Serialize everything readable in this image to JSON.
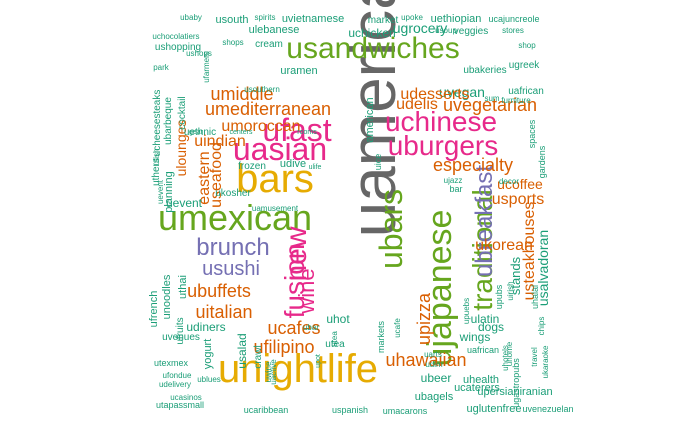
{
  "palette": {
    "teal": "#1b9e77",
    "orange": "#d95f02",
    "purple": "#7570b3",
    "magenta": "#e7298a",
    "green": "#66a61e",
    "gold": "#e6ab02",
    "brown": "#a6761d",
    "gray": "#666666"
  },
  "words": [
    {
      "text": "uamerican",
      "color": "gray"
    },
    {
      "text": "unightlife",
      "color": "gold"
    },
    {
      "text": "usandwiches",
      "color": "green"
    },
    {
      "text": "bars",
      "color": "gold"
    },
    {
      "text": "umexican",
      "color": "green"
    },
    {
      "text": "uchinese",
      "color": "magenta"
    },
    {
      "text": "uburgers",
      "color": "magenta"
    },
    {
      "text": "ufast",
      "color": "magenta"
    },
    {
      "text": "uasian",
      "color": "magenta"
    },
    {
      "text": "ujapanese",
      "color": "green"
    },
    {
      "text": "ubars",
      "color": "green"
    },
    {
      "text": "traditional",
      "color": "green"
    },
    {
      "text": "ubreakfast",
      "color": "purple"
    },
    {
      "text": "brunch",
      "color": "purple"
    },
    {
      "text": "usushi",
      "color": "purple"
    },
    {
      "text": "fusion",
      "color": "magenta"
    },
    {
      "text": "new",
      "color": "magenta"
    },
    {
      "text": "wine",
      "color": "magenta"
    },
    {
      "text": "umediterranean",
      "color": "orange"
    },
    {
      "text": "umoroccan",
      "color": "orange"
    },
    {
      "text": "umiddle",
      "color": "orange"
    },
    {
      "text": "udelis",
      "color": "orange"
    },
    {
      "text": "uvegetarian",
      "color": "orange"
    },
    {
      "text": "uvegan",
      "color": "teal"
    },
    {
      "text": "udesserts",
      "color": "orange"
    },
    {
      "text": "especialty",
      "color": "orange"
    },
    {
      "text": "usports",
      "color": "orange"
    },
    {
      "text": "ukorean",
      "color": "orange"
    },
    {
      "text": "usteakhouses",
      "color": "orange"
    },
    {
      "text": "upizza",
      "color": "orange"
    },
    {
      "text": "uhawaiian",
      "color": "orange"
    },
    {
      "text": "ubuffets",
      "color": "orange"
    },
    {
      "text": "uitalian",
      "color": "orange"
    },
    {
      "text": "ucafes",
      "color": "orange"
    },
    {
      "text": "ufilipino",
      "color": "orange"
    },
    {
      "text": "uindian",
      "color": "orange"
    },
    {
      "text": "useafood",
      "color": "orange"
    },
    {
      "text": "eastern",
      "color": "orange"
    },
    {
      "text": "ulounges",
      "color": "orange"
    },
    {
      "text": "ucoffee",
      "color": "orange"
    },
    {
      "text": "usalvadoran",
      "color": "teal"
    },
    {
      "text": "ugrocery",
      "color": "teal"
    },
    {
      "text": "uchicken",
      "color": "teal"
    },
    {
      "text": "ushopping",
      "color": "teal"
    },
    {
      "text": "uchocolatiers",
      "color": "teal"
    },
    {
      "text": "ulebanese",
      "color": "teal"
    },
    {
      "text": "uvietnamese",
      "color": "teal"
    },
    {
      "text": "uethiopian",
      "color": "teal"
    },
    {
      "text": "ucajuncreole",
      "color": "teal"
    },
    {
      "text": "usouth",
      "color": "teal"
    },
    {
      "text": "market",
      "color": "teal"
    },
    {
      "text": "veggies",
      "color": "teal"
    },
    {
      "text": "cream",
      "color": "teal"
    },
    {
      "text": "uramen",
      "color": "teal"
    },
    {
      "text": "ubakeries",
      "color": "teal"
    },
    {
      "text": "uafrican",
      "color": "teal"
    },
    {
      "text": "ugreek",
      "color": "teal"
    },
    {
      "text": "uevent",
      "color": "teal"
    },
    {
      "text": "uhot",
      "color": "teal"
    },
    {
      "text": "udiners",
      "color": "teal"
    },
    {
      "text": "ulatin",
      "color": "teal"
    },
    {
      "text": "dogs",
      "color": "teal"
    },
    {
      "text": "wings",
      "color": "teal"
    },
    {
      "text": "ubeer",
      "color": "teal"
    },
    {
      "text": "ucaterers",
      "color": "teal"
    },
    {
      "text": "ubagels",
      "color": "teal"
    },
    {
      "text": "uhealth",
      "color": "teal"
    },
    {
      "text": "upersianiranian",
      "color": "teal"
    },
    {
      "text": "uglutenfree",
      "color": "teal"
    },
    {
      "text": "uvenezuelan",
      "color": "teal"
    },
    {
      "text": "uspanish",
      "color": "teal"
    },
    {
      "text": "umacarons",
      "color": "teal"
    },
    {
      "text": "ucaribbean",
      "color": "teal"
    },
    {
      "text": "utapassmall",
      "color": "teal"
    },
    {
      "text": "ucasinos",
      "color": "teal"
    },
    {
      "text": "udelivery",
      "color": "teal"
    },
    {
      "text": "utexmex",
      "color": "teal"
    },
    {
      "text": "ufondue",
      "color": "teal"
    },
    {
      "text": "ublues",
      "color": "teal"
    },
    {
      "text": "uwine",
      "color": "teal"
    },
    {
      "text": "utea",
      "color": "teal"
    },
    {
      "text": "usalad",
      "color": "teal"
    },
    {
      "text": "crawl",
      "color": "teal"
    },
    {
      "text": "uactive",
      "color": "teal"
    },
    {
      "text": "yogurt",
      "color": "teal"
    },
    {
      "text": "uvenues",
      "color": "teal"
    },
    {
      "text": "ufruits",
      "color": "teal"
    },
    {
      "text": "ufrench",
      "color": "teal"
    },
    {
      "text": "unoodles",
      "color": "teal"
    },
    {
      "text": "uthai",
      "color": "teal"
    },
    {
      "text": "planning",
      "color": "teal"
    },
    {
      "text": "uthers",
      "color": "teal"
    },
    {
      "text": "ukosher",
      "color": "teal"
    },
    {
      "text": "frozen",
      "color": "teal"
    },
    {
      "text": "udive",
      "color": "teal"
    },
    {
      "text": "uamusement",
      "color": "teal"
    },
    {
      "text": "ucheesesteaks",
      "color": "teal"
    },
    {
      "text": "ubarbeque",
      "color": "teal"
    },
    {
      "text": "cocktail",
      "color": "teal"
    },
    {
      "text": "uethnic",
      "color": "teal"
    },
    {
      "text": "usouthern",
      "color": "teal"
    },
    {
      "text": "ubaby",
      "color": "teal"
    },
    {
      "text": "spirits",
      "color": "teal"
    },
    {
      "text": "upoke",
      "color": "teal"
    },
    {
      "text": "stores",
      "color": "teal"
    },
    {
      "text": "shops",
      "color": "teal"
    },
    {
      "text": "park",
      "color": "teal"
    },
    {
      "text": "usoup",
      "color": "teal"
    },
    {
      "text": "shop",
      "color": "teal"
    },
    {
      "text": "furniture",
      "color": "teal"
    },
    {
      "text": "sum",
      "color": "teal"
    },
    {
      "text": "spaces",
      "color": "teal"
    },
    {
      "text": "gardens",
      "color": "teal"
    },
    {
      "text": "decor",
      "color": "teal"
    },
    {
      "text": "ujazz",
      "color": "teal"
    },
    {
      "text": "bar",
      "color": "teal"
    },
    {
      "text": "stands",
      "color": "teal"
    },
    {
      "text": "uhalal",
      "color": "teal"
    },
    {
      "text": "ugastropubs",
      "color": "teal"
    },
    {
      "text": "markets",
      "color": "teal"
    },
    {
      "text": "uhome",
      "color": "teal"
    },
    {
      "text": "ukaraoke",
      "color": "teal"
    },
    {
      "text": "uhotels",
      "color": "teal"
    },
    {
      "text": "travel",
      "color": "teal"
    },
    {
      "text": "chips",
      "color": "teal"
    },
    {
      "text": "uirish",
      "color": "teal"
    },
    {
      "text": "upubs",
      "color": "teal"
    },
    {
      "text": "uarts",
      "color": "teal"
    },
    {
      "text": "udim",
      "color": "teal"
    },
    {
      "text": "uafrican",
      "color": "teal"
    },
    {
      "text": "ubar",
      "color": "teal"
    },
    {
      "text": "upot",
      "color": "teal"
    },
    {
      "text": "ucafe",
      "color": "teal"
    },
    {
      "text": "american",
      "color": "teal"
    },
    {
      "text": "ufish",
      "color": "teal"
    },
    {
      "text": "uevent",
      "color": "teal"
    },
    {
      "text": "centers",
      "color": "teal"
    },
    {
      "text": "rooms",
      "color": "teal"
    },
    {
      "text": "gear",
      "color": "teal"
    },
    {
      "text": "ulife",
      "color": "teal"
    },
    {
      "text": "utea",
      "color": "teal"
    },
    {
      "text": "uice",
      "color": "teal"
    },
    {
      "text": "upuebs",
      "color": "teal"
    },
    {
      "text": "ufarmers",
      "color": "teal"
    },
    {
      "text": "ushops",
      "color": "teal"
    }
  ]
}
